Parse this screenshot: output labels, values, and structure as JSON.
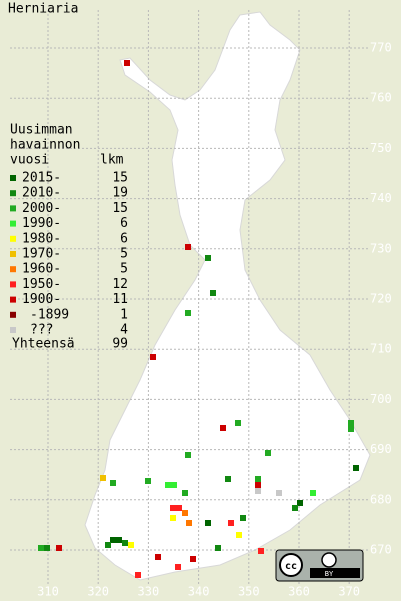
{
  "title": "Herniaria",
  "legend": {
    "header": [
      "Uusimman",
      "havainnon",
      "vuosi"
    ],
    "count_header": "lkm",
    "rows": [
      {
        "label": "2015-",
        "count": 15,
        "color": "#006400"
      },
      {
        "label": "2010-",
        "count": 19,
        "color": "#118811"
      },
      {
        "label": "2000-",
        "count": 15,
        "color": "#22aa22"
      },
      {
        "label": "1990-",
        "count": 6,
        "color": "#33ee33"
      },
      {
        "label": "1980-",
        "count": 6,
        "color": "#ffff00"
      },
      {
        "label": "1970-",
        "count": 5,
        "color": "#f0c000"
      },
      {
        "label": "1960-",
        "count": 5,
        "color": "#ff7700"
      },
      {
        "label": "1950-",
        "count": 12,
        "color": "#ff2020"
      },
      {
        "label": "1900-",
        "count": 11,
        "color": "#cc0000"
      },
      {
        "label": "-1899",
        "count": 1,
        "color": "#880000"
      },
      {
        "label": "???",
        "count": 4,
        "color": "#c8c8c8"
      }
    ],
    "total_label": "Yhteensä",
    "total": 99
  },
  "x_labels": [
    "310",
    "320",
    "330",
    "340",
    "350",
    "360",
    "370"
  ],
  "y_labels": [
    "770",
    "760",
    "750",
    "740",
    "730",
    "720",
    "710",
    "700",
    "690",
    "680",
    "670"
  ],
  "license": {
    "cc": "cc",
    "by": "BY"
  }
}
